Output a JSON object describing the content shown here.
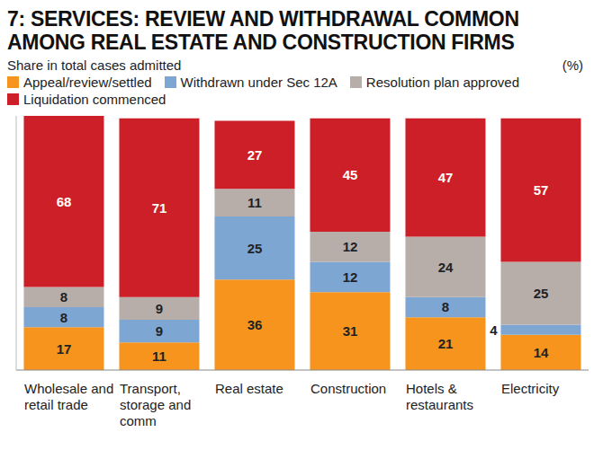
{
  "chart_data": {
    "type": "bar",
    "title": "7: SERVICES: REVIEW AND WITHDRAWAL COMMON AMONG REAL ESTATE AND CONSTRUCTION FIRMS",
    "subtitle": "Share in total cases admitted",
    "y_label": "(%)",
    "categories": [
      "Wholesale and retail trade",
      "Transport, storage and comm",
      "Real estate",
      "Construction",
      "Hotels & restaurants",
      "Electricity"
    ],
    "series": [
      {
        "name": "Appeal/review/settled",
        "color": "#f7941d",
        "values": [
          17,
          11,
          36,
          31,
          21,
          14
        ]
      },
      {
        "name": "Withdrawn under Sec 12A",
        "color": "#7ea6d3",
        "values": [
          8,
          9,
          25,
          12,
          8,
          4
        ]
      },
      {
        "name": "Resolution plan approved",
        "color": "#b7aeaa",
        "values": [
          8,
          9,
          11,
          12,
          24,
          25
        ]
      },
      {
        "name": "Liquidation commenced",
        "color": "#cc1f27",
        "values": [
          68,
          71,
          27,
          45,
          47,
          57
        ]
      }
    ],
    "ylim": [
      0,
      101
    ],
    "stacked": true,
    "data_labels": true,
    "legend": "top",
    "tick_labels": "x"
  }
}
